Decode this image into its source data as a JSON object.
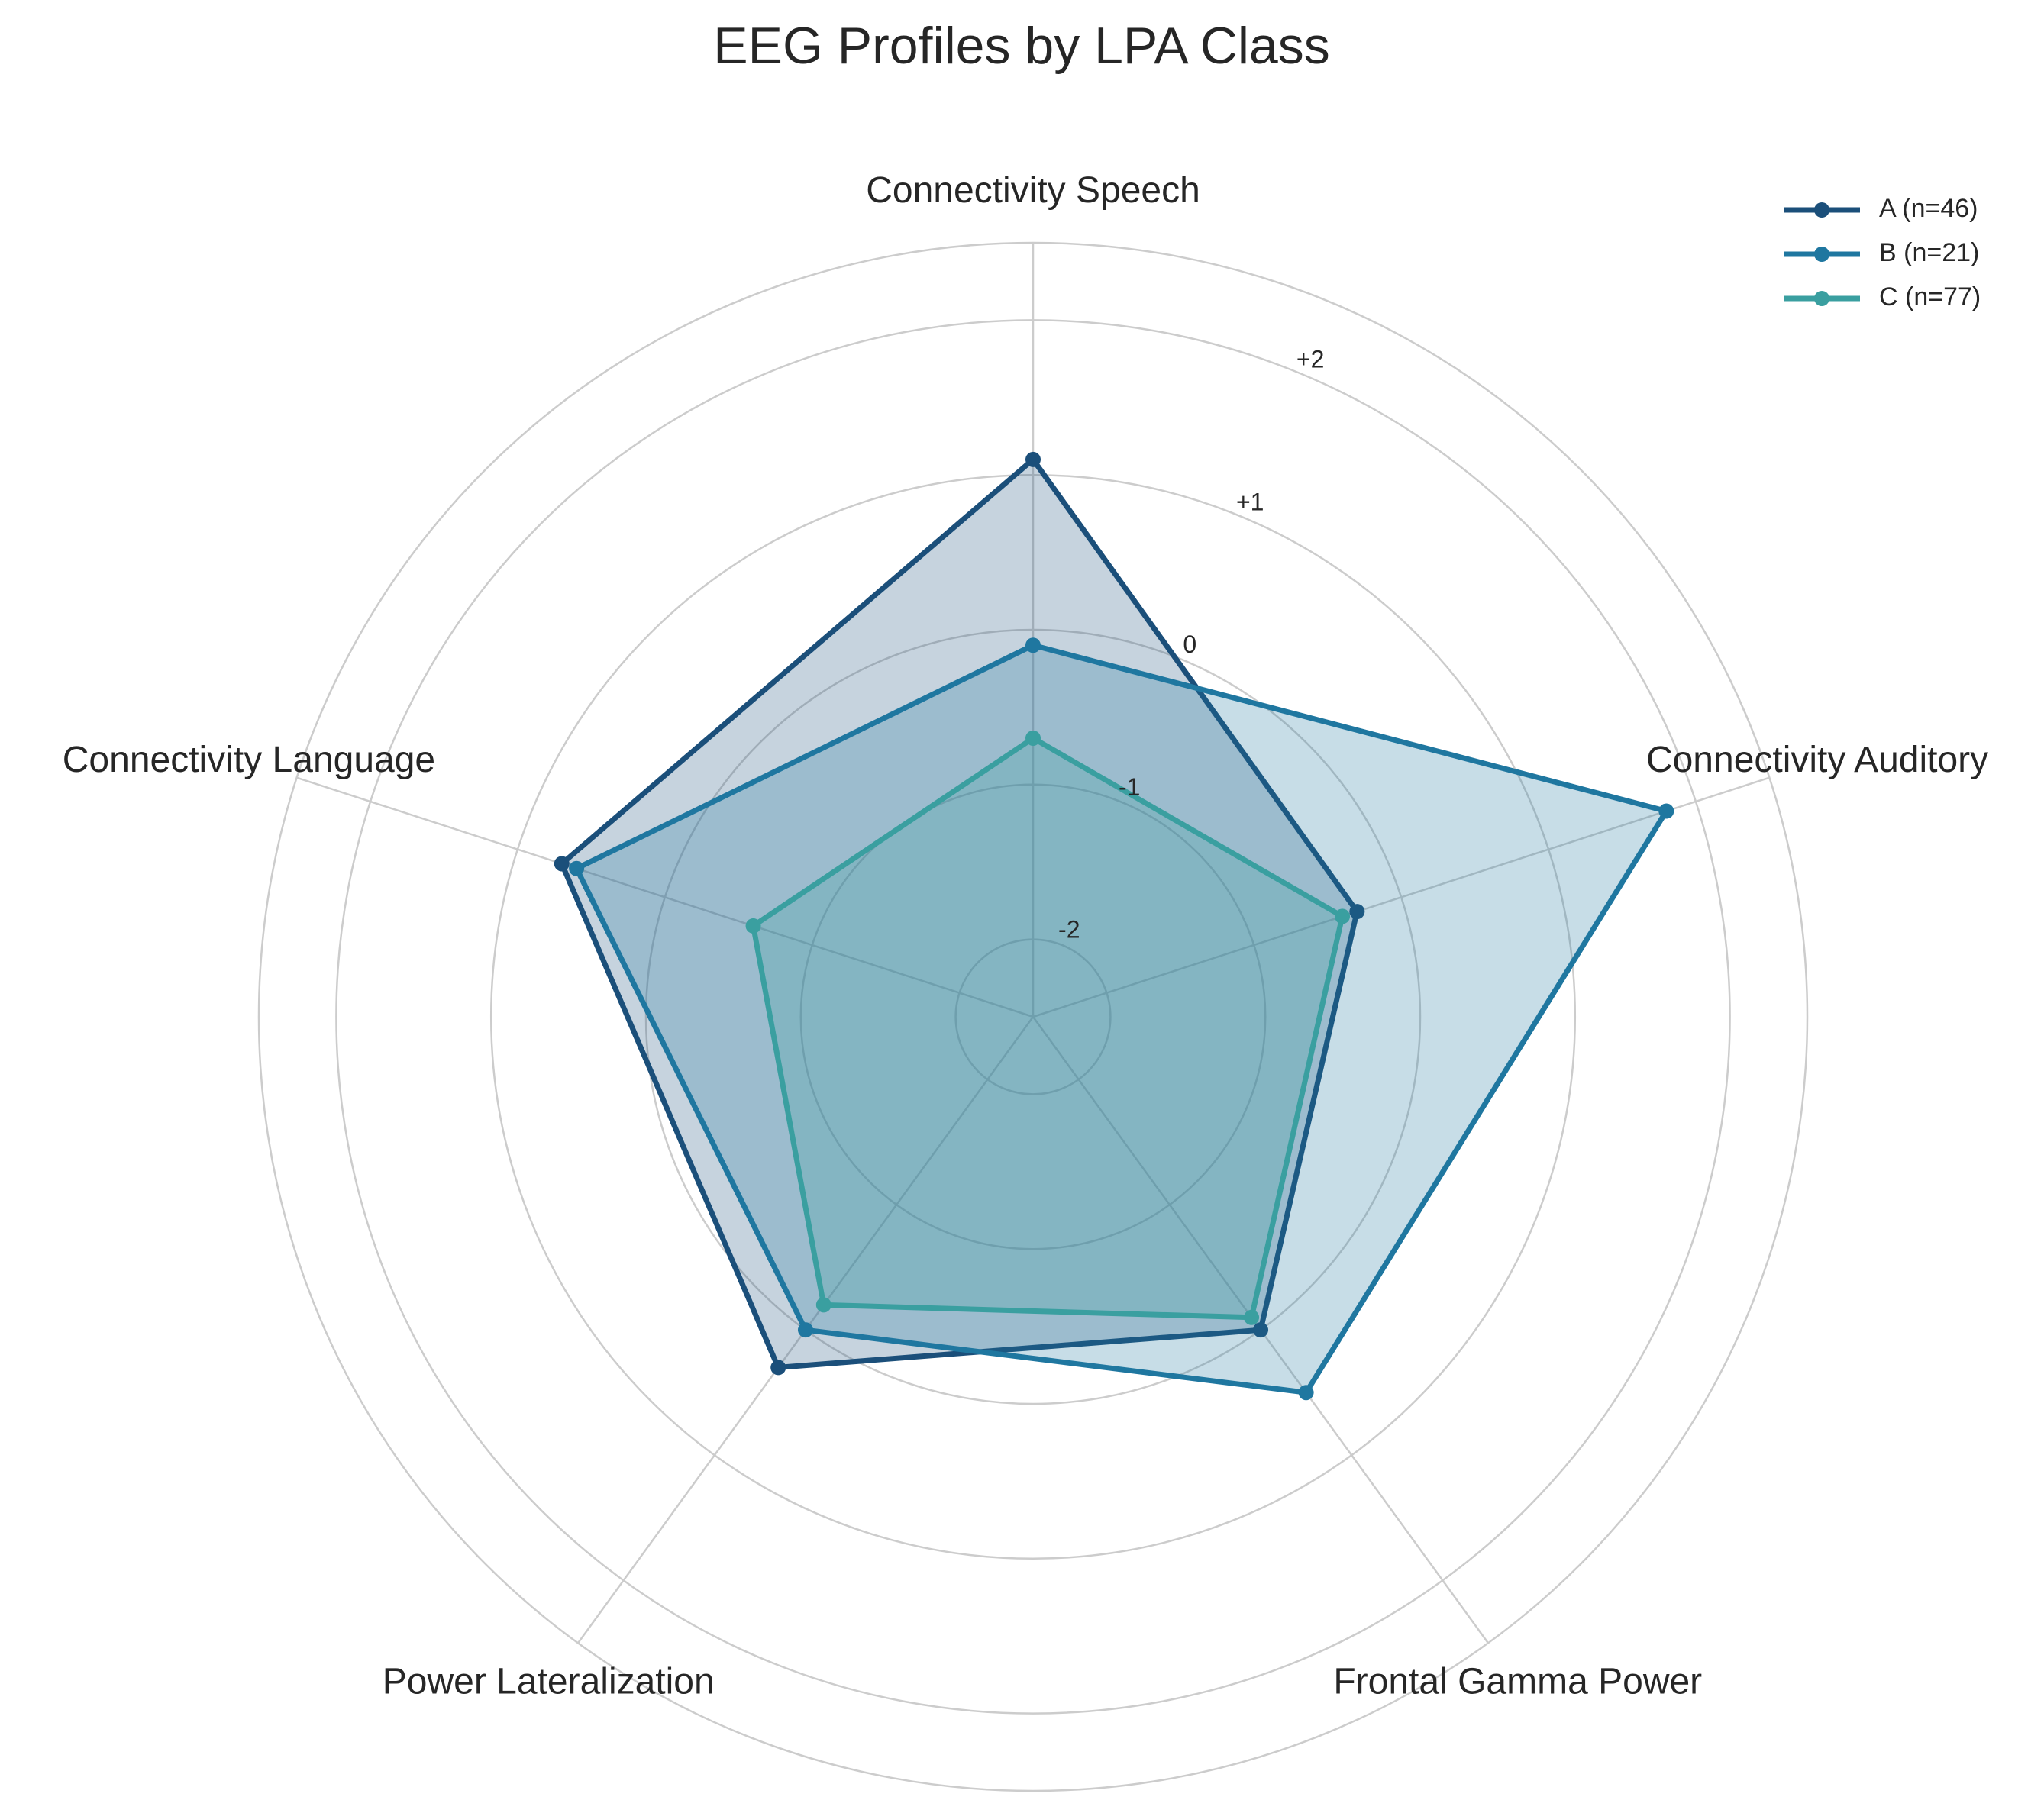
{
  "chart_data": {
    "type": "radar",
    "title": "EEG Profiles by LPA Class",
    "categories": [
      "Connectivity Speech",
      "Connectivity Auditory",
      "Frontal Gamma Power",
      "Power Lateralization",
      "Connectivity Language"
    ],
    "series": [
      {
        "name": "A (n=46)",
        "color": "#1b4f7a",
        "values": [
          1.1,
          -0.3,
          0.0,
          0.3,
          0.7
        ]
      },
      {
        "name": "B (n=21)",
        "color": "#1f77a0",
        "values": [
          -0.1,
          1.8,
          0.5,
          0.0,
          0.6
        ]
      },
      {
        "name": "C (n=77)",
        "color": "#3a9fa0",
        "values": [
          -0.7,
          -0.4,
          -0.1,
          -0.2,
          -0.6
        ]
      }
    ],
    "ylim": [
      -2.5,
      2.5
    ],
    "yticks": [
      -2,
      -1,
      0,
      {
        "value": 1,
        "label": "+1"
      },
      {
        "value": 2,
        "label": "+2"
      }
    ],
    "grid": true,
    "legend": "upper right"
  }
}
